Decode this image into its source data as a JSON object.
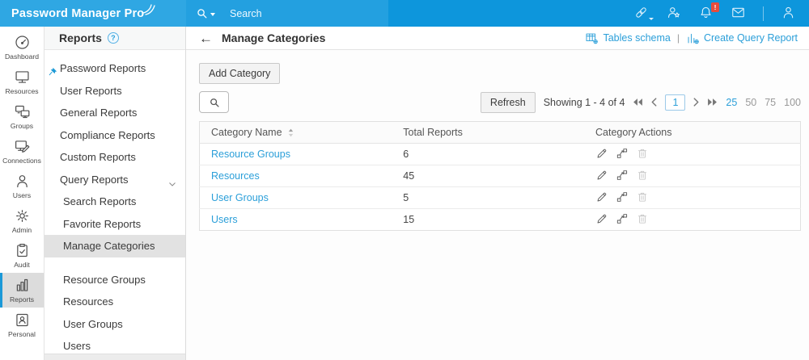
{
  "header": {
    "app_title": "Password Manager Pro",
    "search_label": "Search",
    "icons": [
      {
        "name": "link-icon",
        "badge": null,
        "has_caret": true
      },
      {
        "name": "user-star-icon",
        "badge": null
      },
      {
        "name": "bell-icon",
        "badge": "!"
      },
      {
        "name": "mail-icon",
        "badge": null
      },
      {
        "name": "divider"
      },
      {
        "name": "user-icon",
        "badge": null
      }
    ]
  },
  "primary_nav": [
    {
      "label": "Dashboard",
      "icon": "gauge-icon",
      "active": false
    },
    {
      "label": "Resources",
      "icon": "monitor-icon",
      "active": false
    },
    {
      "label": "Groups",
      "icon": "monitors-group-icon",
      "active": false
    },
    {
      "label": "Connections",
      "icon": "monitor-edit-icon",
      "active": false
    },
    {
      "label": "Users",
      "icon": "person-icon",
      "active": false
    },
    {
      "label": "Admin",
      "icon": "gear-icon",
      "active": false
    },
    {
      "label": "Audit",
      "icon": "clipboard-check-icon",
      "active": false
    },
    {
      "label": "Reports",
      "icon": "bar-chart-icon",
      "active": true
    },
    {
      "label": "Personal",
      "icon": "id-badge-icon",
      "active": false
    }
  ],
  "secondary_nav": {
    "title": "Reports",
    "help": "?",
    "items": [
      {
        "label": "Password Reports",
        "pinned": true
      },
      {
        "label": "User Reports"
      },
      {
        "label": "General Reports"
      },
      {
        "label": "Compliance Reports"
      },
      {
        "label": "Custom Reports"
      },
      {
        "label": "Query Reports",
        "expanded": true
      }
    ],
    "query_sub_items": [
      {
        "label": "Search Reports",
        "active": false
      },
      {
        "label": "Favorite Reports",
        "active": false
      },
      {
        "label": "Manage Categories",
        "active": true
      }
    ],
    "report_links": [
      {
        "label": "Resource Groups"
      },
      {
        "label": "Resources"
      },
      {
        "label": "User Groups"
      },
      {
        "label": "Users"
      }
    ]
  },
  "content": {
    "back_arrow": "←",
    "title": "Manage Categories",
    "header_links": [
      {
        "label": "Tables schema",
        "icon": "table-schema-icon"
      },
      {
        "label": "Create Query Report",
        "icon": "query-report-icon"
      }
    ],
    "toolbar": {
      "add_button": "Add Category",
      "refresh_button": "Refresh",
      "showing_text": "Showing 1 - 4 of 4",
      "current_page": "1",
      "page_sizes": [
        "25",
        "50",
        "75",
        "100"
      ],
      "active_page_size": "25"
    },
    "table": {
      "columns": [
        "Category Name",
        "Total Reports",
        "Category Actions"
      ],
      "rows": [
        {
          "name": "Resource Groups",
          "total_reports": "6"
        },
        {
          "name": "Resources",
          "total_reports": "45"
        },
        {
          "name": "User Groups",
          "total_reports": "5"
        },
        {
          "name": "Users",
          "total_reports": "15"
        }
      ],
      "row_actions": [
        {
          "name": "edit-icon",
          "enabled": true
        },
        {
          "name": "move-icon",
          "enabled": true
        },
        {
          "name": "delete-icon",
          "enabled": false
        }
      ]
    }
  },
  "colors": {
    "header_blue": "#0D96DC",
    "logo_blue": "#2FA7E3",
    "search_blue": "#23A0E0",
    "link_blue": "#2B9FD9",
    "badge_red": "#E74C3C",
    "active_nav_gray": "#DCDCDC",
    "active_nav_edge": "#1B99D8"
  }
}
